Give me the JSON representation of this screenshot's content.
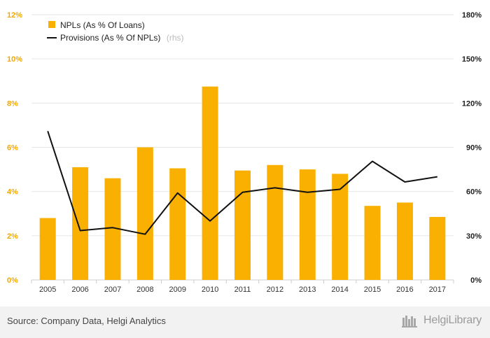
{
  "chart_data": {
    "type": "bar",
    "categories": [
      "2005",
      "2006",
      "2007",
      "2008",
      "2009",
      "2010",
      "2011",
      "2012",
      "2013",
      "2014",
      "2015",
      "2016",
      "2017"
    ],
    "series": [
      {
        "name": "NPLs (As % Of Loans)",
        "axis": "left",
        "type": "bar",
        "color": "#f9b000",
        "values": [
          2.8,
          5.1,
          4.6,
          6.0,
          5.05,
          8.75,
          4.95,
          5.2,
          5.0,
          4.8,
          3.35,
          3.5,
          2.85
        ]
      },
      {
        "name": "Provisions (As % Of NPLs)",
        "name_suffix": "(rhs)",
        "axis": "right",
        "type": "line",
        "color": "#111111",
        "values": [
          101,
          33.5,
          35.5,
          31,
          59,
          40,
          59.5,
          62.5,
          59.5,
          61.5,
          80.5,
          66.5,
          70
        ]
      }
    ],
    "y_left": {
      "min": 0,
      "max": 12,
      "ticks": [
        "0%",
        "2%",
        "4%",
        "6%",
        "8%",
        "10%",
        "12%"
      ],
      "color": "#f2a900"
    },
    "y_right": {
      "min": 0,
      "max": 180,
      "ticks": [
        "0%",
        "30%",
        "60%",
        "90%",
        "120%",
        "150%",
        "180%"
      ]
    },
    "grid": true,
    "legend": "top-left"
  },
  "footer": {
    "source": "Source: Company Data, Helgi Analytics",
    "brand": "HelgiLibrary",
    "brand_icon": "helgi-library-logo-icon"
  }
}
